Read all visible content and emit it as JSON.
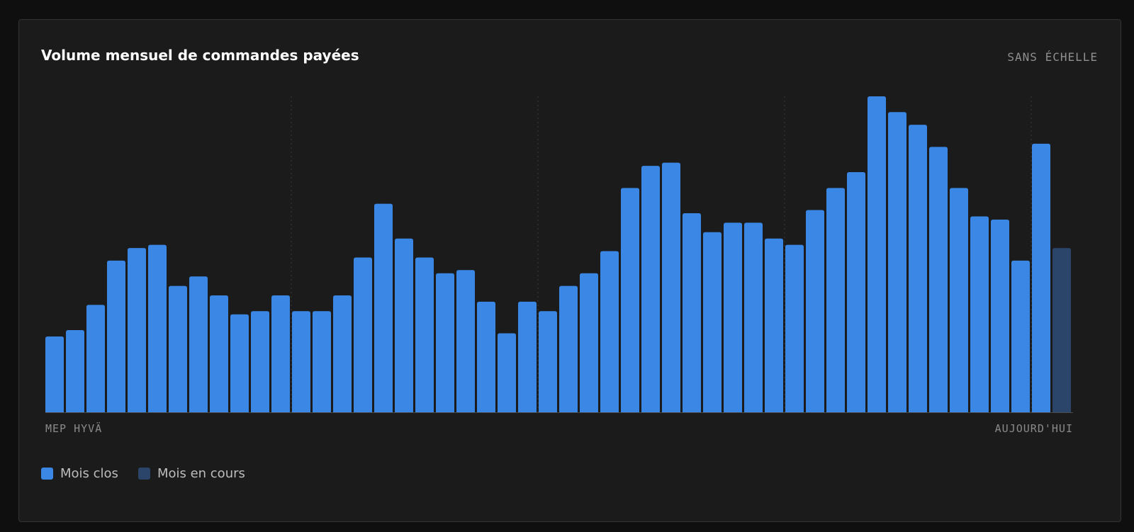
{
  "card": {
    "title": "Volume mensuel de commandes payées",
    "scale_note": "SANS ÉCHELLE"
  },
  "chart_data": {
    "type": "bar",
    "title": "Volume mensuel de commandes payées",
    "scale_note": "SANS ÉCHELLE",
    "x_start_label": "MEP HYVÄ",
    "x_end_label": "AUJOURD'HUI",
    "y_axis_shown": false,
    "ylim": [
      0,
      100
    ],
    "grid": "vertical dotted lines every 12 bars",
    "legend_position": "bottom-left",
    "series": [
      {
        "name": "Mois clos",
        "color": "#3a87e6",
        "values": [
          24,
          26,
          34,
          48,
          52,
          53,
          40,
          43,
          37,
          31,
          32,
          37,
          32,
          32,
          37,
          49,
          66,
          55,
          49,
          44,
          45,
          35,
          25,
          35,
          32,
          40,
          44,
          51,
          71,
          78,
          79,
          63,
          57,
          60,
          60,
          55,
          53,
          64,
          71,
          76,
          100,
          95,
          91,
          84,
          71,
          62,
          61,
          48,
          85
        ]
      },
      {
        "name": "Mois en cours",
        "color": "#2b4469",
        "values": [
          52
        ]
      }
    ]
  },
  "legend": {
    "items": [
      {
        "label": "Mois clos",
        "color": "#3a87e6"
      },
      {
        "label": "Mois en cours",
        "color": "#2b4469"
      }
    ]
  }
}
